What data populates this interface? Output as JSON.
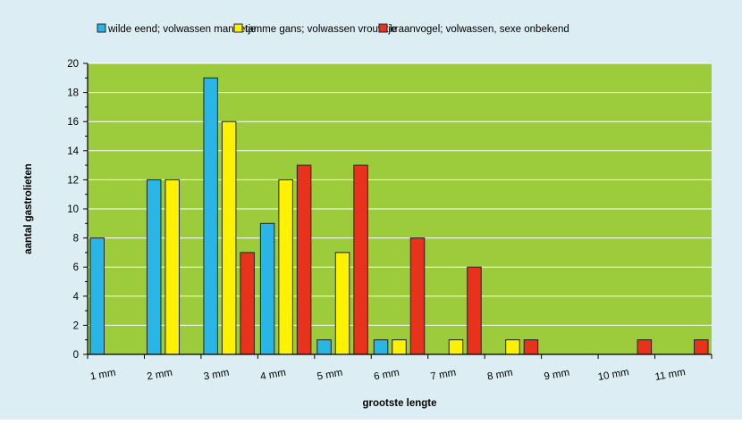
{
  "chart_data": {
    "type": "bar",
    "title": "",
    "xlabel": "grootste lengte",
    "ylabel": "aantal gastrolieten",
    "ylim": [
      0,
      20
    ],
    "yticks": [
      0,
      2,
      4,
      6,
      8,
      10,
      12,
      14,
      16,
      18,
      20
    ],
    "grid": true,
    "legend_position": "top",
    "categories": [
      "1 mm",
      "2 mm",
      "3 mm",
      "4 mm",
      "5 mm",
      "6 mm",
      "7 mm",
      "8 mm",
      "9 mm",
      "10 mm",
      "11 mm"
    ],
    "series": [
      {
        "name": "wilde eend; volwassen mannetje",
        "color": "#29b6e6",
        "values": [
          8,
          12,
          19,
          9,
          1,
          1,
          0,
          0,
          0,
          0,
          0
        ]
      },
      {
        "name": "tamme gans; volwassen vrouwtje",
        "color": "#fff200",
        "values": [
          0,
          12,
          16,
          12,
          7,
          1,
          1,
          1,
          0,
          0,
          0
        ]
      },
      {
        "name": "kraanvogel; volwassen, sexe onbekend",
        "color": "#e8321c",
        "values": [
          0,
          0,
          7,
          13,
          13,
          8,
          6,
          1,
          0,
          1,
          1
        ]
      }
    ],
    "colors": {
      "outer_background": "#dceef4",
      "plot_background": "#9ccc3c",
      "grid": "#ffffff",
      "bar_stroke": "#222222"
    }
  }
}
